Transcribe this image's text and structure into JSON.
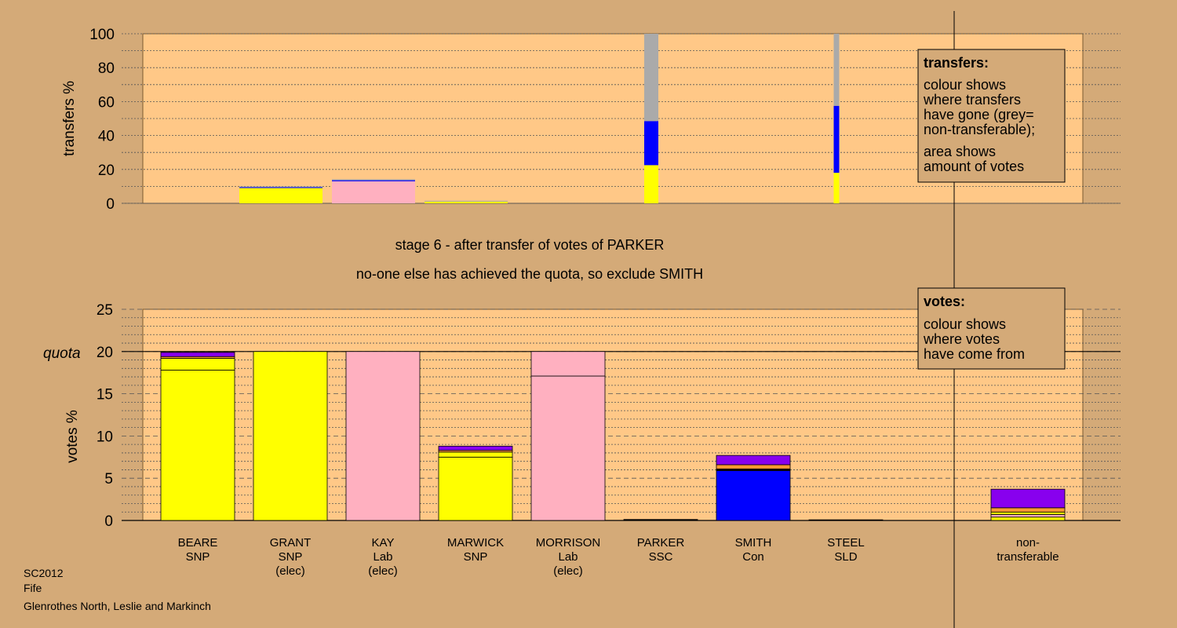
{
  "chart_data": [
    {
      "type": "bar",
      "name": "transfers",
      "ylabel": "transfers %",
      "ylim": [
        0,
        100
      ],
      "yticks": [
        0,
        20,
        40,
        60,
        80,
        100
      ],
      "grid": true,
      "categories": [
        "BEARE",
        "GRANT",
        "KAY",
        "MARWICK",
        "MORRISON",
        "PARKER",
        "SMITH",
        "STEEL"
      ],
      "bars": [
        {
          "candidate": "GRANT",
          "segments": [
            {
              "color": "#FFFF00",
              "value": 9
            },
            {
              "color": "#0000FF",
              "value": 0.5
            },
            {
              "color": "#AAAAAA",
              "value": 0.5
            }
          ]
        },
        {
          "candidate": "KAY",
          "segments": [
            {
              "color": "#FFB0C0",
              "value": 13
            },
            {
              "color": "#0000FF",
              "value": 0.6
            },
            {
              "color": "#AAAAAA",
              "value": 0.6
            }
          ]
        },
        {
          "candidate": "MARWICK",
          "segments": [
            {
              "color": "#FFFF00",
              "value": 1
            },
            {
              "color": "#AAAAAA",
              "value": 0.5
            }
          ]
        },
        {
          "candidate": "PARKER",
          "segments": [
            {
              "color": "#FFFF00",
              "value": 22.5
            },
            {
              "color": "#0000FF",
              "value": 26
            },
            {
              "color": "#AAAAAA",
              "value": 51.5
            }
          ]
        },
        {
          "candidate": "STEEL",
          "segments": [
            {
              "color": "#FFFF00",
              "value": 18
            },
            {
              "color": "#0000FF",
              "value": 39.5
            },
            {
              "color": "#AAAAAA",
              "value": 42.5
            }
          ]
        }
      ],
      "legend": {
        "title": "transfers:",
        "lines1": [
          "colour shows",
          "where transfers",
          "have gone (grey=",
          "non-transferable);"
        ],
        "lines2": [
          "area shows",
          "amount of votes"
        ],
        "position": "top-right"
      }
    },
    {
      "type": "bar",
      "name": "votes",
      "ylabel": "votes %",
      "ylim": [
        0,
        25
      ],
      "yticks": [
        0,
        5,
        10,
        15,
        20,
        25
      ],
      "quota": 20,
      "quota_label": "quota",
      "grid": true,
      "candidates": [
        {
          "name": "BEARE",
          "party": "SNP",
          "elec": "",
          "segments": [
            {
              "color": "#FFFF00",
              "value": 17.8
            },
            {
              "color": "#FFFF00",
              "value": 1.4
            },
            {
              "color": "#FF9933",
              "value": 0.2
            },
            {
              "color": "#8800EE",
              "value": 0.5
            }
          ]
        },
        {
          "name": "GRANT",
          "party": "SNP",
          "elec": "(elec)",
          "segments": [
            {
              "color": "#FFFF00",
              "value": 20
            }
          ]
        },
        {
          "name": "KAY",
          "party": "Lab",
          "elec": "(elec)",
          "segments": [
            {
              "color": "#FFB0C0",
              "value": 20
            }
          ]
        },
        {
          "name": "MARWICK",
          "party": "SNP",
          "elec": "",
          "segments": [
            {
              "color": "#FFFF00",
              "value": 7.5
            },
            {
              "color": "#FFFF00",
              "value": 0.6
            },
            {
              "color": "#FF9933",
              "value": 0.2
            },
            {
              "color": "#8800EE",
              "value": 0.5
            }
          ]
        },
        {
          "name": "MORRISON",
          "party": "Lab",
          "elec": "(elec)",
          "segments": [
            {
              "color": "#FFB0C0",
              "value": 17.1
            },
            {
              "color": "#FFB0C0",
              "value": 2.9
            }
          ]
        },
        {
          "name": "PARKER",
          "party": "SSC",
          "elec": "",
          "segments": [
            {
              "color": "#000000",
              "value": 0.12
            }
          ]
        },
        {
          "name": "SMITH",
          "party": "Con",
          "elec": "",
          "segments": [
            {
              "color": "#0000FF",
              "value": 5.9
            },
            {
              "color": "#000000",
              "value": 0.2
            },
            {
              "color": "#FF9933",
              "value": 0.5
            },
            {
              "color": "#8800EE",
              "value": 1.1
            }
          ]
        },
        {
          "name": "STEEL",
          "party": "SLD",
          "elec": "",
          "segments": [
            {
              "color": "#000000",
              "value": 0.08
            }
          ]
        }
      ],
      "nontransferable": {
        "label1": "non-",
        "label2": "transferable",
        "segments": [
          {
            "color": "#FFFF00",
            "value": 0.4
          },
          {
            "color": "#FFB0C0",
            "value": 0.3
          },
          {
            "color": "#FFFF00",
            "value": 0.3
          },
          {
            "color": "#FF9933",
            "value": 0.5
          },
          {
            "color": "#8800EE",
            "value": 2.2
          }
        ]
      },
      "legend": {
        "title": "votes:",
        "lines": [
          "colour shows",
          "where votes",
          "have come from"
        ],
        "position": "top-right"
      }
    }
  ],
  "stage": {
    "line1": "stage 6 - after transfer of votes of PARKER",
    "line2": "no-one else has achieved the quota, so exclude SMITH"
  },
  "footer": {
    "election": "SC2012",
    "council": "Fife",
    "ward": "Glenrothes North, Leslie and Markinch"
  },
  "colors": {
    "background": "#D4AA78",
    "plot_bg": "#FFC887",
    "snp": "#FFFF00",
    "lab": "#FFB0C0",
    "con": "#0000FF",
    "other": "#8800EE",
    "ssc": "#FF9933",
    "nontransferable": "#AAAAAA"
  }
}
